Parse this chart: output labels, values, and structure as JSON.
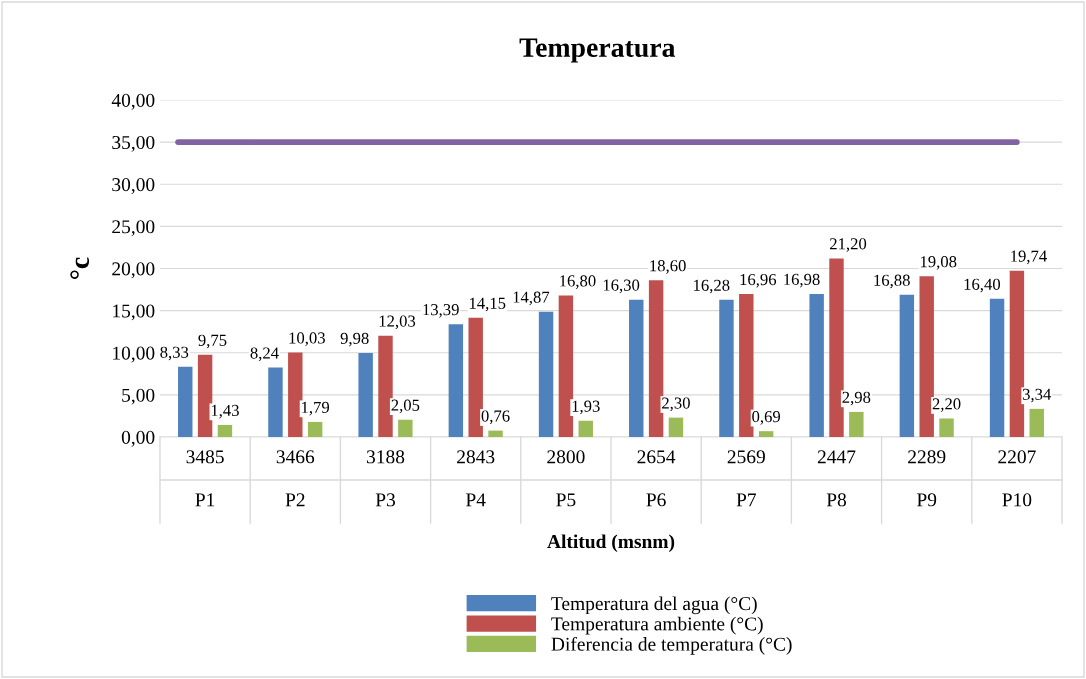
{
  "chart_data": {
    "type": "bar",
    "title": "Temperatura",
    "xlabel": "Altitud (msnm)",
    "ylabel": "°c",
    "categories": [
      "3485\nP1",
      "3466\nP2",
      "3188\nP3",
      "2843\nP4",
      "2800\nP5",
      "2654\nP6",
      "2569\nP7",
      "2447\nP8",
      "2289\nP9",
      "2207\nP10"
    ],
    "series": [
      {
        "name": "Temperatura del agua (°C)",
        "color": "#4f81bd",
        "values": [
          8.33,
          8.24,
          9.98,
          13.39,
          14.87,
          16.3,
          16.28,
          16.98,
          16.88,
          16.4
        ],
        "value_labels": [
          "8,33",
          "8,24",
          "9,98",
          "13,39",
          "14,87",
          "16,30",
          "16,28",
          "16,98",
          "16,88",
          "16,40"
        ]
      },
      {
        "name": "Temperatura ambiente (°C)",
        "color": "#c0504d",
        "values": [
          9.75,
          10.03,
          12.03,
          14.15,
          16.8,
          18.6,
          16.96,
          21.2,
          19.08,
          19.74
        ],
        "value_labels": [
          "9,75",
          "10,03",
          "12,03",
          "14,15",
          "16,80",
          "18,60",
          "16,96",
          "21,20",
          "19,08",
          "19,74"
        ]
      },
      {
        "name": "Diferencia de temperatura (°C)",
        "color": "#9bbb59",
        "values": [
          1.43,
          1.79,
          2.05,
          0.76,
          1.93,
          2.3,
          0.69,
          2.98,
          2.2,
          3.34
        ],
        "value_labels": [
          "1,43",
          "1,79",
          "2,05",
          "0,76",
          "1,93",
          "2,30",
          "0,69",
          "2,98",
          "2,20",
          "3,34"
        ]
      }
    ],
    "ylim": [
      0,
      40
    ],
    "yticks": [
      {
        "value": 0,
        "label": "0,00"
      },
      {
        "value": 5,
        "label": "5,00"
      },
      {
        "value": 10,
        "label": "10,00"
      },
      {
        "value": 15,
        "label": "15,00"
      },
      {
        "value": 20,
        "label": "20,00"
      },
      {
        "value": 25,
        "label": "25,00"
      },
      {
        "value": 30,
        "label": "30,00"
      },
      {
        "value": 35,
        "label": "35,00"
      },
      {
        "value": 40,
        "label": "40,00"
      }
    ],
    "ref_lines": [
      {
        "axis": "y",
        "value": 35,
        "color": "#8064a2"
      }
    ],
    "grid": "y",
    "legend": "bottom"
  }
}
